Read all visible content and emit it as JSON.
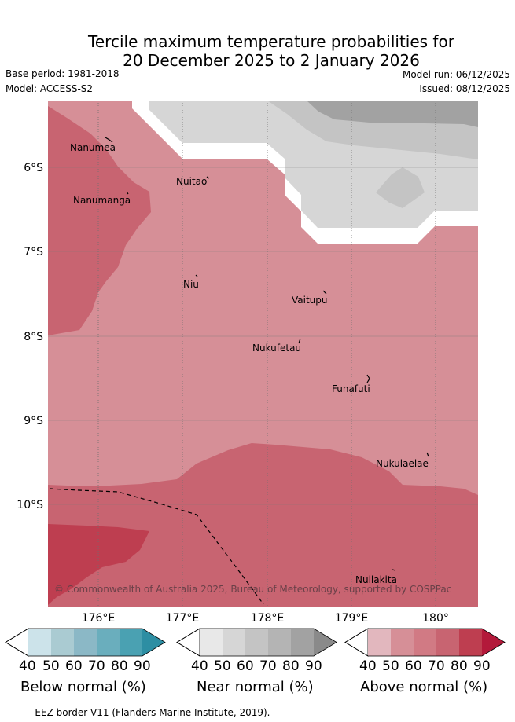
{
  "title": {
    "line1": "Tercile maximum temperature probabilities for",
    "line2": "20 December 2025 to 2 January 2026"
  },
  "meta": {
    "base_period": "Base period: 1981-2018",
    "model": "Model: ACCESS-S2",
    "model_run": "Model run: 06/12/2025",
    "issued": "Issued: 08/12/2025"
  },
  "map": {
    "lon_ticks": [
      "176°E",
      "177°E",
      "178°E",
      "179°E",
      "180°"
    ],
    "lat_ticks": [
      "6°S",
      "7°S",
      "8°S",
      "9°S",
      "10°S"
    ],
    "places": [
      {
        "name": "Nanumea"
      },
      {
        "name": "Nuitao"
      },
      {
        "name": "Nanumanga"
      },
      {
        "name": "Niu"
      },
      {
        "name": "Vaitupu"
      },
      {
        "name": "Nukufetau"
      },
      {
        "name": "Funafuti"
      },
      {
        "name": "Nukulaelae"
      },
      {
        "name": "Nuilakita"
      }
    ],
    "copyright": "© Commonwealth of Australia 2025, Bureau of Meteorology, supported by COSPPac"
  },
  "colorbars": {
    "ticks": [
      "40",
      "50",
      "60",
      "70",
      "80",
      "90"
    ],
    "below": {
      "title": "Below normal (%)",
      "colors": [
        "#cce3ea",
        "#aacbd2",
        "#8bb8c6",
        "#6aaebd",
        "#4aa1b2",
        "#2d8ea3"
      ]
    },
    "near": {
      "title": "Near normal (%)",
      "colors": [
        "#e8e8e8",
        "#d6d6d6",
        "#c4c4c4",
        "#b4b4b4",
        "#a2a2a2",
        "#8a8a8a"
      ]
    },
    "above": {
      "title": "Above normal (%)",
      "colors": [
        "#e2b7be",
        "#d68f97",
        "#d17a84",
        "#c86471",
        "#be3e50",
        "#b3193a"
      ]
    }
  },
  "footer": "--  --  -- EEZ border V11 (Flanders Marine Institute, 2019)."
}
